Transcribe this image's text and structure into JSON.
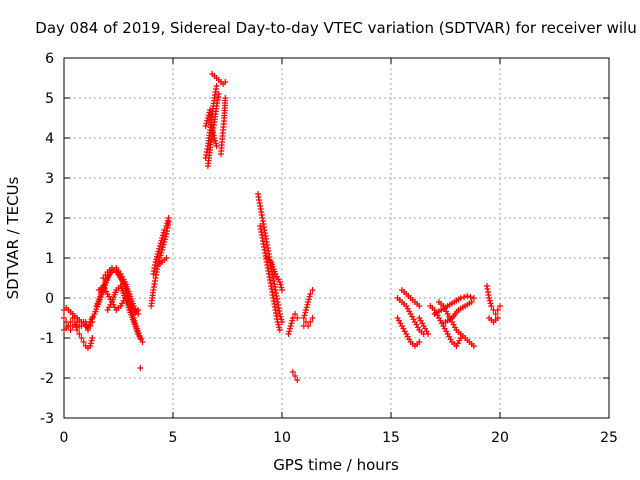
{
  "chart_data": {
    "type": "scatter",
    "title": "Day 084 of 2019, Sidereal Day-to-day VTEC variation (SDTVAR) for receiver wilu",
    "xlabel": "GPS time / hours",
    "ylabel": "SDTVAR / TECUs",
    "xlim": [
      0,
      25
    ],
    "ylim": [
      -3,
      6
    ],
    "xticks": [
      0,
      5,
      10,
      15,
      20,
      25
    ],
    "yticks": [
      -3,
      -2,
      -1,
      0,
      1,
      2,
      3,
      4,
      5,
      6
    ],
    "grid": true,
    "marker": "+",
    "color": "#ff0000",
    "series": [
      {
        "name": "seg01",
        "x": [
          0.0,
          0.1,
          0.2,
          0.3,
          0.4,
          0.5,
          0.6,
          0.7,
          0.8,
          0.9,
          1.0,
          1.1,
          1.2,
          1.3
        ],
        "y": [
          -0.5,
          -0.6,
          -0.7,
          -0.8,
          -0.7,
          -0.6,
          -0.8,
          -0.9,
          -1.0,
          -1.1,
          -1.2,
          -1.25,
          -1.2,
          -1.0
        ]
      },
      {
        "name": "seg02",
        "x": [
          0.0,
          0.1,
          0.2,
          0.3,
          0.4,
          0.5,
          0.6,
          0.7,
          0.8,
          0.9,
          1.0,
          1.1,
          1.2,
          1.3
        ],
        "y": [
          -0.8,
          -0.75,
          -0.7,
          -0.6,
          -0.5,
          -0.5,
          -0.6,
          -0.7,
          -0.7,
          -0.6,
          -0.6,
          -0.8,
          -0.7,
          -0.6
        ]
      },
      {
        "name": "seg03",
        "x": [
          0.0,
          0.1,
          0.2,
          0.3,
          0.4,
          0.5,
          0.6,
          0.7,
          0.8,
          0.9,
          1.0,
          1.1,
          1.2,
          1.3
        ],
        "y": [
          -0.3,
          -0.25,
          -0.3,
          -0.35,
          -0.4,
          -0.45,
          -0.5,
          -0.55,
          -0.6,
          -0.65,
          -0.7,
          -0.75,
          -0.6,
          -0.5
        ]
      },
      {
        "name": "seg04",
        "x": [
          1.2,
          1.4,
          1.6,
          1.8,
          2.0,
          2.2,
          2.4,
          2.6,
          2.8,
          3.0,
          3.2,
          3.4
        ],
        "y": [
          -0.6,
          -0.4,
          -0.1,
          0.2,
          0.5,
          0.7,
          0.75,
          0.6,
          0.4,
          0.1,
          -0.2,
          -0.4
        ]
      },
      {
        "name": "seg05",
        "x": [
          1.5,
          1.7,
          1.9,
          2.1,
          2.3,
          2.5,
          2.7,
          2.9,
          3.1,
          3.3,
          3.5
        ],
        "y": [
          -0.2,
          0.1,
          0.4,
          0.6,
          0.7,
          0.6,
          0.4,
          0.1,
          -0.3,
          -0.7,
          -1.0
        ]
      },
      {
        "name": "seg06",
        "x": [
          1.6,
          1.8,
          2.0,
          2.2,
          2.4,
          2.6,
          2.8,
          3.0,
          3.2,
          3.4
        ],
        "y": [
          0.2,
          0.3,
          0.1,
          -0.1,
          -0.3,
          -0.2,
          0.0,
          -0.1,
          -0.4,
          -0.3
        ]
      },
      {
        "name": "seg07",
        "x": [
          2.0,
          2.2,
          2.4,
          2.6,
          2.8,
          3.0,
          3.2,
          3.4,
          3.6
        ],
        "y": [
          -0.3,
          -0.1,
          0.2,
          0.3,
          0.0,
          -0.3,
          -0.6,
          -0.9,
          -1.1
        ]
      },
      {
        "name": "seg08",
        "x": [
          1.8,
          2.0,
          2.2,
          2.4,
          2.6,
          2.8,
          3.0
        ],
        "y": [
          0.5,
          0.65,
          0.75,
          0.7,
          0.5,
          0.3,
          0.1
        ]
      },
      {
        "name": "seg09",
        "x": [
          3.5
        ],
        "y": [
          -1.75
        ]
      },
      {
        "name": "seg10",
        "x": [
          4.0,
          4.1,
          4.2,
          4.3,
          4.4,
          4.5,
          4.6,
          4.7,
          4.8
        ],
        "y": [
          -0.2,
          0.2,
          0.5,
          0.8,
          1.0,
          1.2,
          1.4,
          1.6,
          1.9
        ]
      },
      {
        "name": "seg11",
        "x": [
          4.1,
          4.2,
          4.3,
          4.4,
          4.5,
          4.6,
          4.7,
          4.8
        ],
        "y": [
          0.6,
          0.9,
          1.1,
          1.3,
          1.5,
          1.7,
          1.8,
          2.0
        ]
      },
      {
        "name": "seg12",
        "x": [
          4.3,
          4.5,
          4.7
        ],
        "y": [
          0.8,
          0.9,
          1.0
        ]
      },
      {
        "name": "seg13",
        "x": [
          6.5,
          6.6,
          6.7,
          6.8,
          6.9,
          7.0
        ],
        "y": [
          3.5,
          3.8,
          4.2,
          4.6,
          5.0,
          5.3
        ]
      },
      {
        "name": "seg14",
        "x": [
          6.6,
          6.7,
          6.8,
          6.9,
          7.0,
          7.1
        ],
        "y": [
          3.3,
          3.7,
          4.1,
          4.4,
          4.8,
          5.1
        ]
      },
      {
        "name": "seg15",
        "x": [
          6.8,
          6.9,
          7.0,
          7.1,
          7.2,
          7.3,
          7.4
        ],
        "y": [
          5.6,
          5.55,
          5.5,
          5.45,
          5.4,
          5.35,
          5.4
        ]
      },
      {
        "name": "seg16",
        "x": [
          7.2,
          7.25,
          7.3,
          7.35,
          7.4
        ],
        "y": [
          3.6,
          3.9,
          4.2,
          4.5,
          5.0
        ]
      },
      {
        "name": "seg17",
        "x": [
          6.5,
          6.6,
          6.7,
          6.8,
          6.9,
          7.0
        ],
        "y": [
          4.3,
          4.5,
          4.7,
          4.2,
          4.0,
          3.8
        ]
      },
      {
        "name": "seg18",
        "x": [
          8.9,
          9.0,
          9.1,
          9.2,
          9.3,
          9.4,
          9.5,
          9.6,
          9.7,
          9.8,
          9.9,
          10.0
        ],
        "y": [
          2.6,
          2.3,
          2.0,
          1.7,
          1.4,
          1.1,
          0.8,
          0.5,
          0.2,
          -0.1,
          -0.4,
          -0.6
        ]
      },
      {
        "name": "seg19",
        "x": [
          9.0,
          9.1,
          9.2,
          9.3,
          9.4,
          9.5,
          9.6,
          9.7,
          9.8,
          9.9
        ],
        "y": [
          1.8,
          1.5,
          1.2,
          0.9,
          0.6,
          0.3,
          0.0,
          -0.3,
          -0.6,
          -0.8
        ]
      },
      {
        "name": "seg20",
        "x": [
          9.3,
          9.5,
          9.7,
          9.9,
          10.0
        ],
        "y": [
          1.0,
          0.9,
          0.6,
          0.4,
          0.2
        ]
      },
      {
        "name": "seg21",
        "x": [
          10.3,
          10.4,
          10.5,
          10.6,
          10.7
        ],
        "y": [
          -0.9,
          -0.7,
          -0.5,
          -0.4,
          -0.5
        ]
      },
      {
        "name": "seg22",
        "x": [
          10.5,
          10.6,
          10.7
        ],
        "y": [
          -1.85,
          -1.95,
          -2.05
        ]
      },
      {
        "name": "seg23",
        "x": [
          11.0,
          11.1,
          11.2,
          11.3,
          11.4
        ],
        "y": [
          -0.5,
          -0.3,
          -0.1,
          0.1,
          0.2
        ]
      },
      {
        "name": "seg24",
        "x": [
          11.0,
          11.1,
          11.2,
          11.3,
          11.4
        ],
        "y": [
          -0.7,
          -0.6,
          -0.7,
          -0.6,
          -0.5
        ]
      },
      {
        "name": "seg25",
        "x": [
          15.3,
          15.5,
          15.7,
          15.9,
          16.1,
          16.3
        ],
        "y": [
          -0.5,
          -0.7,
          -0.9,
          -1.1,
          -1.2,
          -1.1
        ]
      },
      {
        "name": "seg26",
        "x": [
          15.3,
          15.5,
          15.7,
          15.9,
          16.1,
          16.3,
          16.5
        ],
        "y": [
          0.0,
          -0.1,
          -0.2,
          -0.4,
          -0.6,
          -0.8,
          -0.9
        ]
      },
      {
        "name": "seg27",
        "x": [
          15.5,
          15.7,
          15.9,
          16.1,
          16.3
        ],
        "y": [
          0.2,
          0.1,
          0.0,
          -0.1,
          -0.2
        ]
      },
      {
        "name": "seg28",
        "x": [
          16.3,
          16.5,
          16.7
        ],
        "y": [
          -0.5,
          -0.7,
          -0.9
        ]
      },
      {
        "name": "seg29",
        "x": [
          16.8,
          17.0,
          17.2,
          17.4,
          17.6,
          17.8,
          18.0,
          18.2
        ],
        "y": [
          -0.2,
          -0.3,
          -0.5,
          -0.7,
          -0.9,
          -1.1,
          -1.2,
          -1.0
        ]
      },
      {
        "name": "seg30",
        "x": [
          17.2,
          17.4,
          17.6,
          17.8,
          18.0,
          18.2,
          18.4,
          18.6,
          18.8
        ],
        "y": [
          -0.1,
          -0.2,
          -0.4,
          -0.6,
          -0.8,
          -0.9,
          -1.0,
          -1.1,
          -1.2
        ]
      },
      {
        "name": "seg31",
        "x": [
          17.0,
          17.3,
          17.6,
          17.9,
          18.2,
          18.5,
          18.8
        ],
        "y": [
          -0.4,
          -0.3,
          -0.2,
          -0.1,
          0.0,
          0.05,
          0.0
        ]
      },
      {
        "name": "seg32",
        "x": [
          17.5,
          17.8,
          18.1,
          18.4,
          18.7
        ],
        "y": [
          -0.6,
          -0.5,
          -0.3,
          -0.2,
          -0.1
        ]
      },
      {
        "name": "seg33",
        "x": [
          19.4,
          19.5,
          19.6,
          19.7,
          19.8,
          19.9,
          20.0
        ],
        "y": [
          0.3,
          0.0,
          -0.2,
          -0.3,
          -0.4,
          -0.3,
          -0.2
        ]
      },
      {
        "name": "seg34",
        "x": [
          19.5,
          19.7,
          19.9
        ],
        "y": [
          -0.5,
          -0.6,
          -0.5
        ]
      }
    ]
  }
}
